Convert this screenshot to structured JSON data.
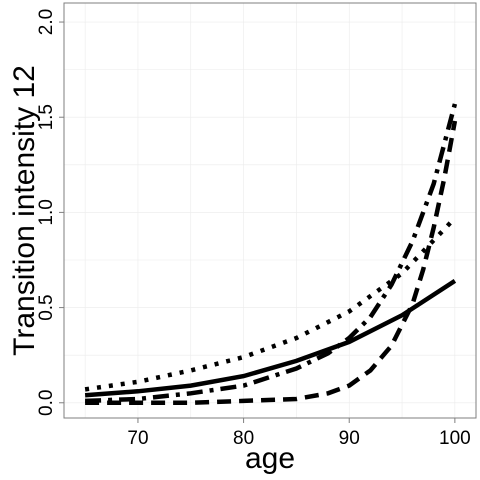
{
  "chart_data": {
    "type": "line",
    "title": "",
    "xlabel": "age",
    "ylabel": "Transition intensity 12",
    "xlim": [
      63,
      102
    ],
    "ylim": [
      -0.08,
      2.1
    ],
    "x_ticks": [
      70,
      80,
      90,
      100
    ],
    "y_ticks": [
      0.0,
      0.5,
      1.0,
      1.5,
      2.0
    ],
    "x_tick_labels": [
      "70",
      "80",
      "90",
      "100"
    ],
    "y_tick_labels": [
      "0.0",
      "0.5",
      "1.0",
      "1.5",
      "2.0"
    ],
    "grid": true,
    "legend": "none",
    "line_color": "#000000",
    "series": [
      {
        "style": "solid",
        "x": [
          65,
          70,
          75,
          80,
          85,
          90,
          95,
          100
        ],
        "y": [
          0.04,
          0.06,
          0.09,
          0.14,
          0.22,
          0.32,
          0.46,
          0.64
        ]
      },
      {
        "style": "dotted",
        "x": [
          65,
          70,
          75,
          80,
          85,
          90,
          95,
          100
        ],
        "y": [
          0.07,
          0.11,
          0.17,
          0.24,
          0.34,
          0.48,
          0.68,
          0.97
        ]
      },
      {
        "style": "dashdot",
        "x": [
          65,
          70,
          75,
          80,
          85,
          88,
          90,
          92,
          94,
          96,
          98,
          100
        ],
        "y": [
          0.01,
          0.02,
          0.05,
          0.09,
          0.18,
          0.26,
          0.34,
          0.45,
          0.62,
          0.85,
          1.15,
          1.57
        ]
      },
      {
        "style": "dashed",
        "x": [
          65,
          70,
          75,
          80,
          85,
          88,
          90,
          92,
          94,
          96,
          97,
          98,
          99,
          100
        ],
        "y": [
          0.0,
          0.0,
          0.0,
          0.01,
          0.02,
          0.05,
          0.09,
          0.17,
          0.3,
          0.52,
          0.7,
          0.92,
          1.18,
          1.48
        ]
      }
    ]
  }
}
